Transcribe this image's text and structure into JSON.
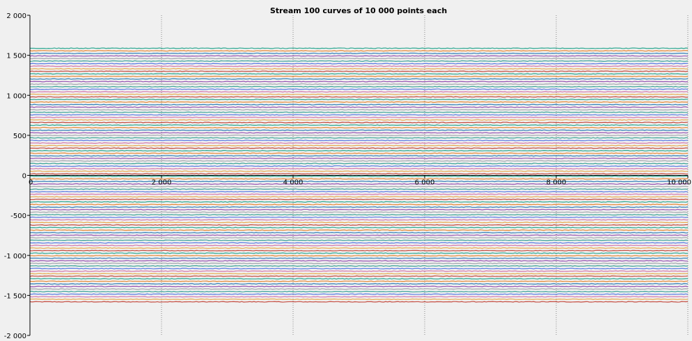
{
  "chart_data": {
    "type": "line",
    "title": "Stream 100 curves of 10 000 points each",
    "xlabel": "",
    "ylabel": "",
    "xlim": [
      0,
      10000
    ],
    "ylim": [
      -2000,
      2000
    ],
    "x_ticks": [
      {
        "value": 0,
        "label": "0"
      },
      {
        "value": 2000,
        "label": "2 000"
      },
      {
        "value": 4000,
        "label": "4 000"
      },
      {
        "value": 6000,
        "label": "6 000"
      },
      {
        "value": 8000,
        "label": "8 000"
      },
      {
        "value": 10000,
        "label": "10 000"
      }
    ],
    "y_ticks": [
      {
        "value": 2000,
        "label": "2 000"
      },
      {
        "value": 1500,
        "label": "1 500"
      },
      {
        "value": 1000,
        "label": "1 000"
      },
      {
        "value": 500,
        "label": "500"
      },
      {
        "value": 0,
        "label": "0"
      },
      {
        "value": -500,
        "label": "-500"
      },
      {
        "value": -1000,
        "label": "-1 000"
      },
      {
        "value": -1500,
        "label": "-1 500"
      },
      {
        "value": -2000,
        "label": "-2 000"
      }
    ],
    "grid": "vertical-dotted",
    "legend": "none",
    "series_count": 100,
    "points_per_series": 10000,
    "series_offset_start": -1580,
    "series_offset_step": 32,
    "noise_amplitude": 4,
    "palette": [
      "#c0392b",
      "#e8a33c",
      "#d16ba5",
      "#4a6fe3",
      "#2a9d8f",
      "#9aa0a6",
      "#8e44ad",
      "#1f77b4",
      "#e67e22",
      "#16a085"
    ]
  }
}
